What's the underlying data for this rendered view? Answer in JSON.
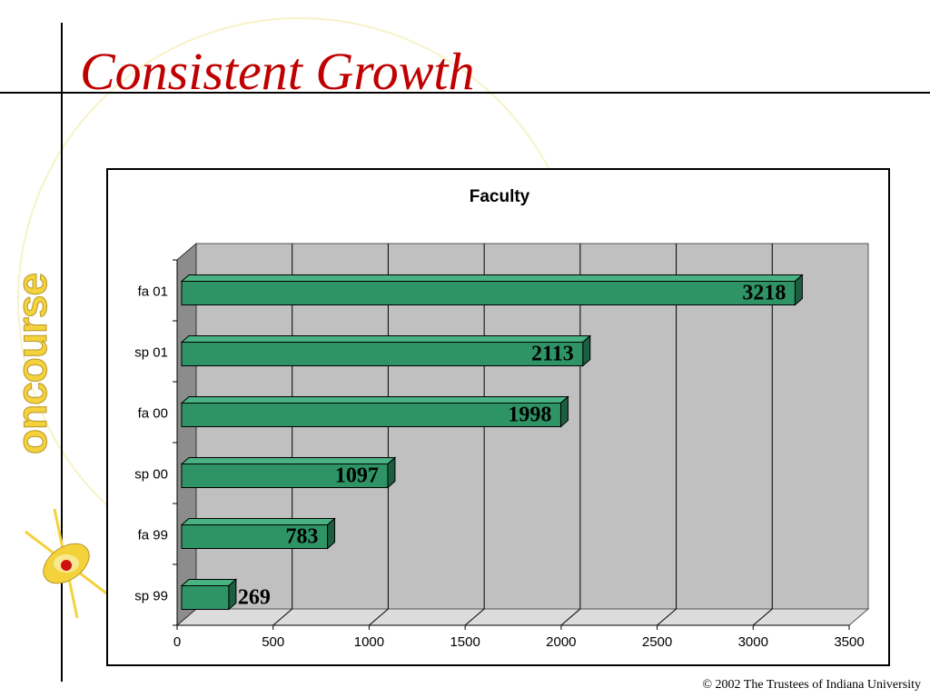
{
  "slide": {
    "title": "Consistent Growth",
    "footer": "© 2002 The Trustees of Indiana University",
    "logo_text": "oncourse"
  },
  "colors": {
    "title": "#c00000",
    "bar_face": "#2e9466",
    "bar_top": "#48b282",
    "bar_side": "#1c5e40",
    "plot_back": "#c0c0c0",
    "plot_floor": "#dcdcdc",
    "plot_left_wall": "#8c8c8c"
  },
  "chart_data": {
    "type": "bar",
    "orientation": "horizontal",
    "title": "Faculty",
    "categories": [
      "fa 01",
      "sp 01",
      "fa 00",
      "sp 00",
      "fa 99",
      "sp 99"
    ],
    "values": [
      3218,
      2113,
      1998,
      1097,
      783,
      269
    ],
    "xlim": [
      0,
      3500
    ],
    "x_ticks": [
      0,
      500,
      1000,
      1500,
      2000,
      2500,
      3000,
      3500
    ],
    "grid": true,
    "style": "3d",
    "data_labels": true
  }
}
